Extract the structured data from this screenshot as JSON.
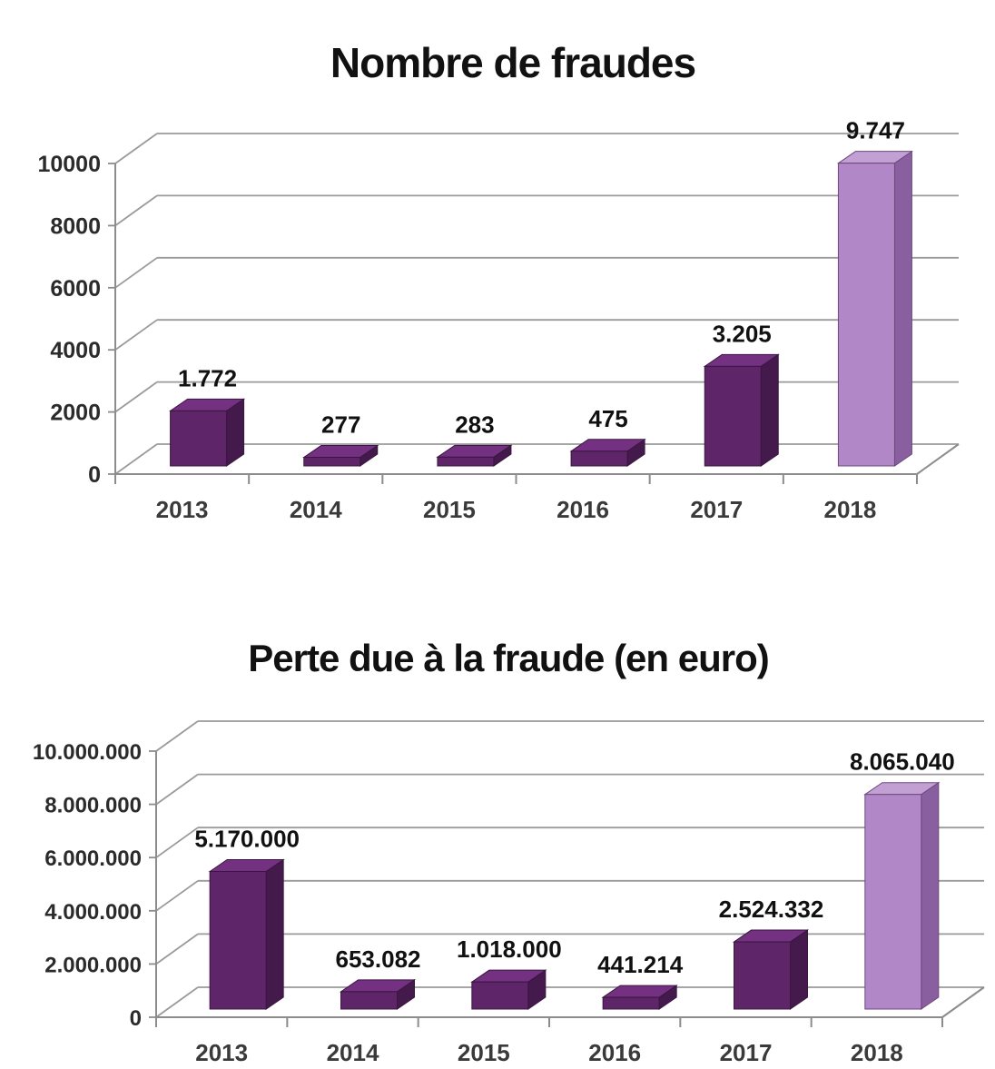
{
  "page": {
    "background": "#ffffff"
  },
  "chart_data": [
    {
      "type": "bar",
      "bar_style": "3d",
      "title": "Nombre de fraudes",
      "categories": [
        "2013",
        "2014",
        "2015",
        "2016",
        "2017",
        "2018"
      ],
      "values": [
        1772,
        277,
        283,
        475,
        3205,
        9747
      ],
      "value_labels": [
        "1.772",
        "277",
        "283",
        "475",
        "3.205",
        "9.747"
      ],
      "xlabel": "",
      "ylabel": "",
      "ylim": [
        0,
        10000
      ],
      "yticks": [
        0,
        2000,
        4000,
        6000,
        8000,
        10000
      ],
      "ytick_labels": [
        "0",
        "2000",
        "4000",
        "6000",
        "8000",
        "10000"
      ],
      "grid": true,
      "legend_position": "none",
      "highlight_index": 5,
      "colors": {
        "bar_front": "#5e2568",
        "bar_top": "#743081",
        "bar_side": "#431a4b",
        "bar_outline": "#3a1640",
        "highlight_front": "#b287c8",
        "highlight_top": "#c2a0d4",
        "highlight_side": "#8a5fa0",
        "highlight_outline": "#6b4a7d",
        "gridline": "#9a9a9a",
        "axis": "#8c8c8c",
        "title_text": "#111111",
        "data_label_text": "#111111",
        "ytick_text": "#2b2b2b",
        "xtick_text": "#3a3a3a"
      }
    },
    {
      "type": "bar",
      "bar_style": "3d",
      "title": "Perte due à la fraude (en euro)",
      "categories": [
        "2013",
        "2014",
        "2015",
        "2016",
        "2017",
        "2018"
      ],
      "values": [
        5170000,
        653082,
        1018000,
        441214,
        2524332,
        8065040
      ],
      "value_labels": [
        "5.170.000",
        "653.082",
        "1.018.000",
        "441.214",
        "2.524.332",
        "8.065.040"
      ],
      "xlabel": "",
      "ylabel": "",
      "ylim": [
        0,
        10000000
      ],
      "yticks": [
        0,
        2000000,
        4000000,
        6000000,
        8000000,
        10000000
      ],
      "ytick_labels": [
        "0",
        "2.000.000",
        "4.000.000",
        "6.000.000",
        "8.000.000",
        "10.000.000"
      ],
      "grid": true,
      "legend_position": "none",
      "highlight_index": 5,
      "colors": {
        "bar_front": "#5e2568",
        "bar_top": "#743081",
        "bar_side": "#431a4b",
        "bar_outline": "#3a1640",
        "highlight_front": "#b287c8",
        "highlight_top": "#c2a0d4",
        "highlight_side": "#8a5fa0",
        "highlight_outline": "#6b4a7d",
        "gridline": "#9a9a9a",
        "axis": "#8c8c8c",
        "title_text": "#111111",
        "data_label_text": "#111111",
        "ytick_text": "#2b2b2b",
        "xtick_text": "#3a3a3a"
      }
    }
  ]
}
